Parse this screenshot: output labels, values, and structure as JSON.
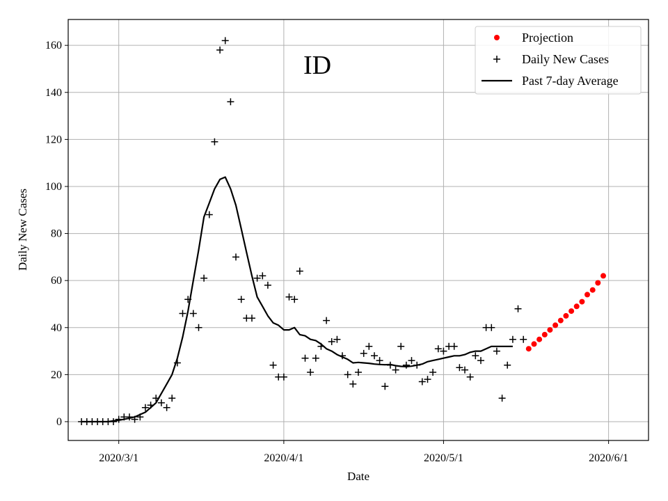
{
  "chart_data": {
    "type": "line",
    "title": "",
    "annotation": "ID",
    "xlabel": "Date",
    "ylabel": "Daily New Cases",
    "xlim": [
      -9.5,
      99.5
    ],
    "ylim": [
      -8,
      171
    ],
    "x_ticks": [
      {
        "day": 0,
        "label": "2020/3/1"
      },
      {
        "day": 31,
        "label": "2020/4/1"
      },
      {
        "day": 61,
        "label": "2020/5/1"
      },
      {
        "day": 92,
        "label": "2020/6/1"
      }
    ],
    "y_ticks": [
      0,
      20,
      40,
      60,
      80,
      100,
      120,
      140,
      160
    ],
    "grid": true,
    "legend": {
      "location": "top-right",
      "entries": [
        {
          "label": "Projection",
          "marker": "dot",
          "color": "#ff0000"
        },
        {
          "label": "Daily New Cases",
          "marker": "plus",
          "color": "#000000"
        },
        {
          "label": "Past 7-day Average",
          "marker": "line",
          "color": "#000000"
        }
      ]
    },
    "x_unit": "days since 2020/3/1",
    "series": [
      {
        "name": "Daily New Cases",
        "style": "plus",
        "color": "#000000",
        "points": [
          [
            -7,
            0
          ],
          [
            -6,
            0
          ],
          [
            -5,
            0
          ],
          [
            -4,
            0
          ],
          [
            -3,
            0
          ],
          [
            -2,
            0
          ],
          [
            -1,
            0
          ],
          [
            0,
            1
          ],
          [
            1,
            2
          ],
          [
            2,
            2
          ],
          [
            3,
            1
          ],
          [
            4,
            2
          ],
          [
            5,
            6
          ],
          [
            6,
            7
          ],
          [
            7,
            10
          ],
          [
            8,
            8
          ],
          [
            9,
            6
          ],
          [
            10,
            10
          ],
          [
            11,
            25
          ],
          [
            12,
            46
          ],
          [
            13,
            52
          ],
          [
            14,
            46
          ],
          [
            15,
            40
          ],
          [
            16,
            61
          ],
          [
            17,
            88
          ],
          [
            18,
            119
          ],
          [
            19,
            158
          ],
          [
            20,
            162
          ],
          [
            21,
            136
          ],
          [
            22,
            70
          ],
          [
            23,
            52
          ],
          [
            24,
            44
          ],
          [
            25,
            44
          ],
          [
            26,
            61
          ],
          [
            27,
            62
          ],
          [
            28,
            58
          ],
          [
            29,
            24
          ],
          [
            30,
            19
          ],
          [
            31,
            19
          ],
          [
            32,
            53
          ],
          [
            33,
            52
          ],
          [
            34,
            64
          ],
          [
            35,
            27
          ],
          [
            36,
            21
          ],
          [
            37,
            27
          ],
          [
            38,
            32
          ],
          [
            39,
            43
          ],
          [
            40,
            34
          ],
          [
            41,
            35
          ],
          [
            42,
            28
          ],
          [
            43,
            20
          ],
          [
            44,
            16
          ],
          [
            45,
            21
          ],
          [
            46,
            29
          ],
          [
            47,
            32
          ],
          [
            48,
            28
          ],
          [
            49,
            26
          ],
          [
            50,
            15
          ],
          [
            51,
            24
          ],
          [
            52,
            22
          ],
          [
            53,
            32
          ],
          [
            54,
            24
          ],
          [
            55,
            26
          ],
          [
            56,
            24
          ],
          [
            57,
            17
          ],
          [
            58,
            18
          ],
          [
            59,
            21
          ],
          [
            60,
            31
          ],
          [
            61,
            30
          ],
          [
            62,
            32
          ],
          [
            63,
            32
          ],
          [
            64,
            23
          ],
          [
            65,
            22
          ],
          [
            66,
            19
          ],
          [
            67,
            28
          ],
          [
            68,
            26
          ],
          [
            69,
            40
          ],
          [
            70,
            40
          ],
          [
            71,
            30
          ],
          [
            72,
            10
          ],
          [
            73,
            24
          ],
          [
            74,
            35
          ],
          [
            75,
            48
          ],
          [
            76,
            35
          ]
        ]
      },
      {
        "name": "Past 7-day Average",
        "style": "line",
        "color": "#000000",
        "points": [
          [
            -7,
            0
          ],
          [
            -6,
            0
          ],
          [
            -5,
            0
          ],
          [
            -4,
            0
          ],
          [
            -3,
            0
          ],
          [
            -2,
            0
          ],
          [
            -1,
            0.3
          ],
          [
            0,
            0.6
          ],
          [
            1,
            1
          ],
          [
            2,
            1.5
          ],
          [
            3,
            2
          ],
          [
            4,
            3
          ],
          [
            5,
            4
          ],
          [
            6,
            6
          ],
          [
            7,
            8
          ],
          [
            8,
            12
          ],
          [
            9,
            16
          ],
          [
            10,
            20
          ],
          [
            11,
            27
          ],
          [
            12,
            36
          ],
          [
            13,
            47
          ],
          [
            14,
            60
          ],
          [
            15,
            73
          ],
          [
            16,
            87
          ],
          [
            17,
            93
          ],
          [
            18,
            99
          ],
          [
            19,
            103
          ],
          [
            20,
            104
          ],
          [
            21,
            99
          ],
          [
            22,
            92
          ],
          [
            23,
            82
          ],
          [
            24,
            72
          ],
          [
            25,
            62
          ],
          [
            26,
            53
          ],
          [
            27,
            49
          ],
          [
            28,
            45
          ],
          [
            29,
            42
          ],
          [
            30,
            41
          ],
          [
            31,
            39
          ],
          [
            32,
            39
          ],
          [
            33,
            40
          ],
          [
            34,
            37
          ],
          [
            35,
            36.5
          ],
          [
            36,
            35
          ],
          [
            37,
            34.5
          ],
          [
            38,
            33
          ],
          [
            39,
            31
          ],
          [
            40,
            30
          ],
          [
            41,
            28.5
          ],
          [
            42,
            27.5
          ],
          [
            43,
            26.5
          ],
          [
            44,
            25
          ],
          [
            45,
            25.2
          ],
          [
            46,
            25
          ],
          [
            47,
            24.8
          ],
          [
            48,
            24.5
          ],
          [
            49,
            24.3
          ],
          [
            50,
            24.2
          ],
          [
            51,
            24.3
          ],
          [
            52,
            23.8
          ],
          [
            53,
            23.5
          ],
          [
            54,
            23.4
          ],
          [
            55,
            23.6
          ],
          [
            56,
            24
          ],
          [
            57,
            24.5
          ],
          [
            58,
            25.5
          ],
          [
            59,
            26
          ],
          [
            60,
            26.5
          ],
          [
            61,
            27
          ],
          [
            62,
            27.5
          ],
          [
            63,
            28
          ],
          [
            64,
            28
          ],
          [
            65,
            28.5
          ],
          [
            66,
            29.5
          ],
          [
            67,
            30
          ],
          [
            68,
            30
          ],
          [
            69,
            31
          ],
          [
            70,
            32
          ],
          [
            71,
            32
          ],
          [
            72,
            32
          ],
          [
            73,
            32
          ],
          [
            74,
            32
          ]
        ]
      },
      {
        "name": "Projection",
        "style": "dot",
        "color": "#ff0000",
        "points": [
          [
            77,
            31
          ],
          [
            78,
            33
          ],
          [
            79,
            35
          ],
          [
            80,
            37
          ],
          [
            81,
            39
          ],
          [
            82,
            41
          ],
          [
            83,
            43
          ],
          [
            84,
            45
          ],
          [
            85,
            47
          ],
          [
            86,
            49
          ],
          [
            87,
            51
          ],
          [
            88,
            54
          ],
          [
            89,
            56
          ],
          [
            90,
            59
          ],
          [
            91,
            62
          ]
        ]
      }
    ]
  }
}
